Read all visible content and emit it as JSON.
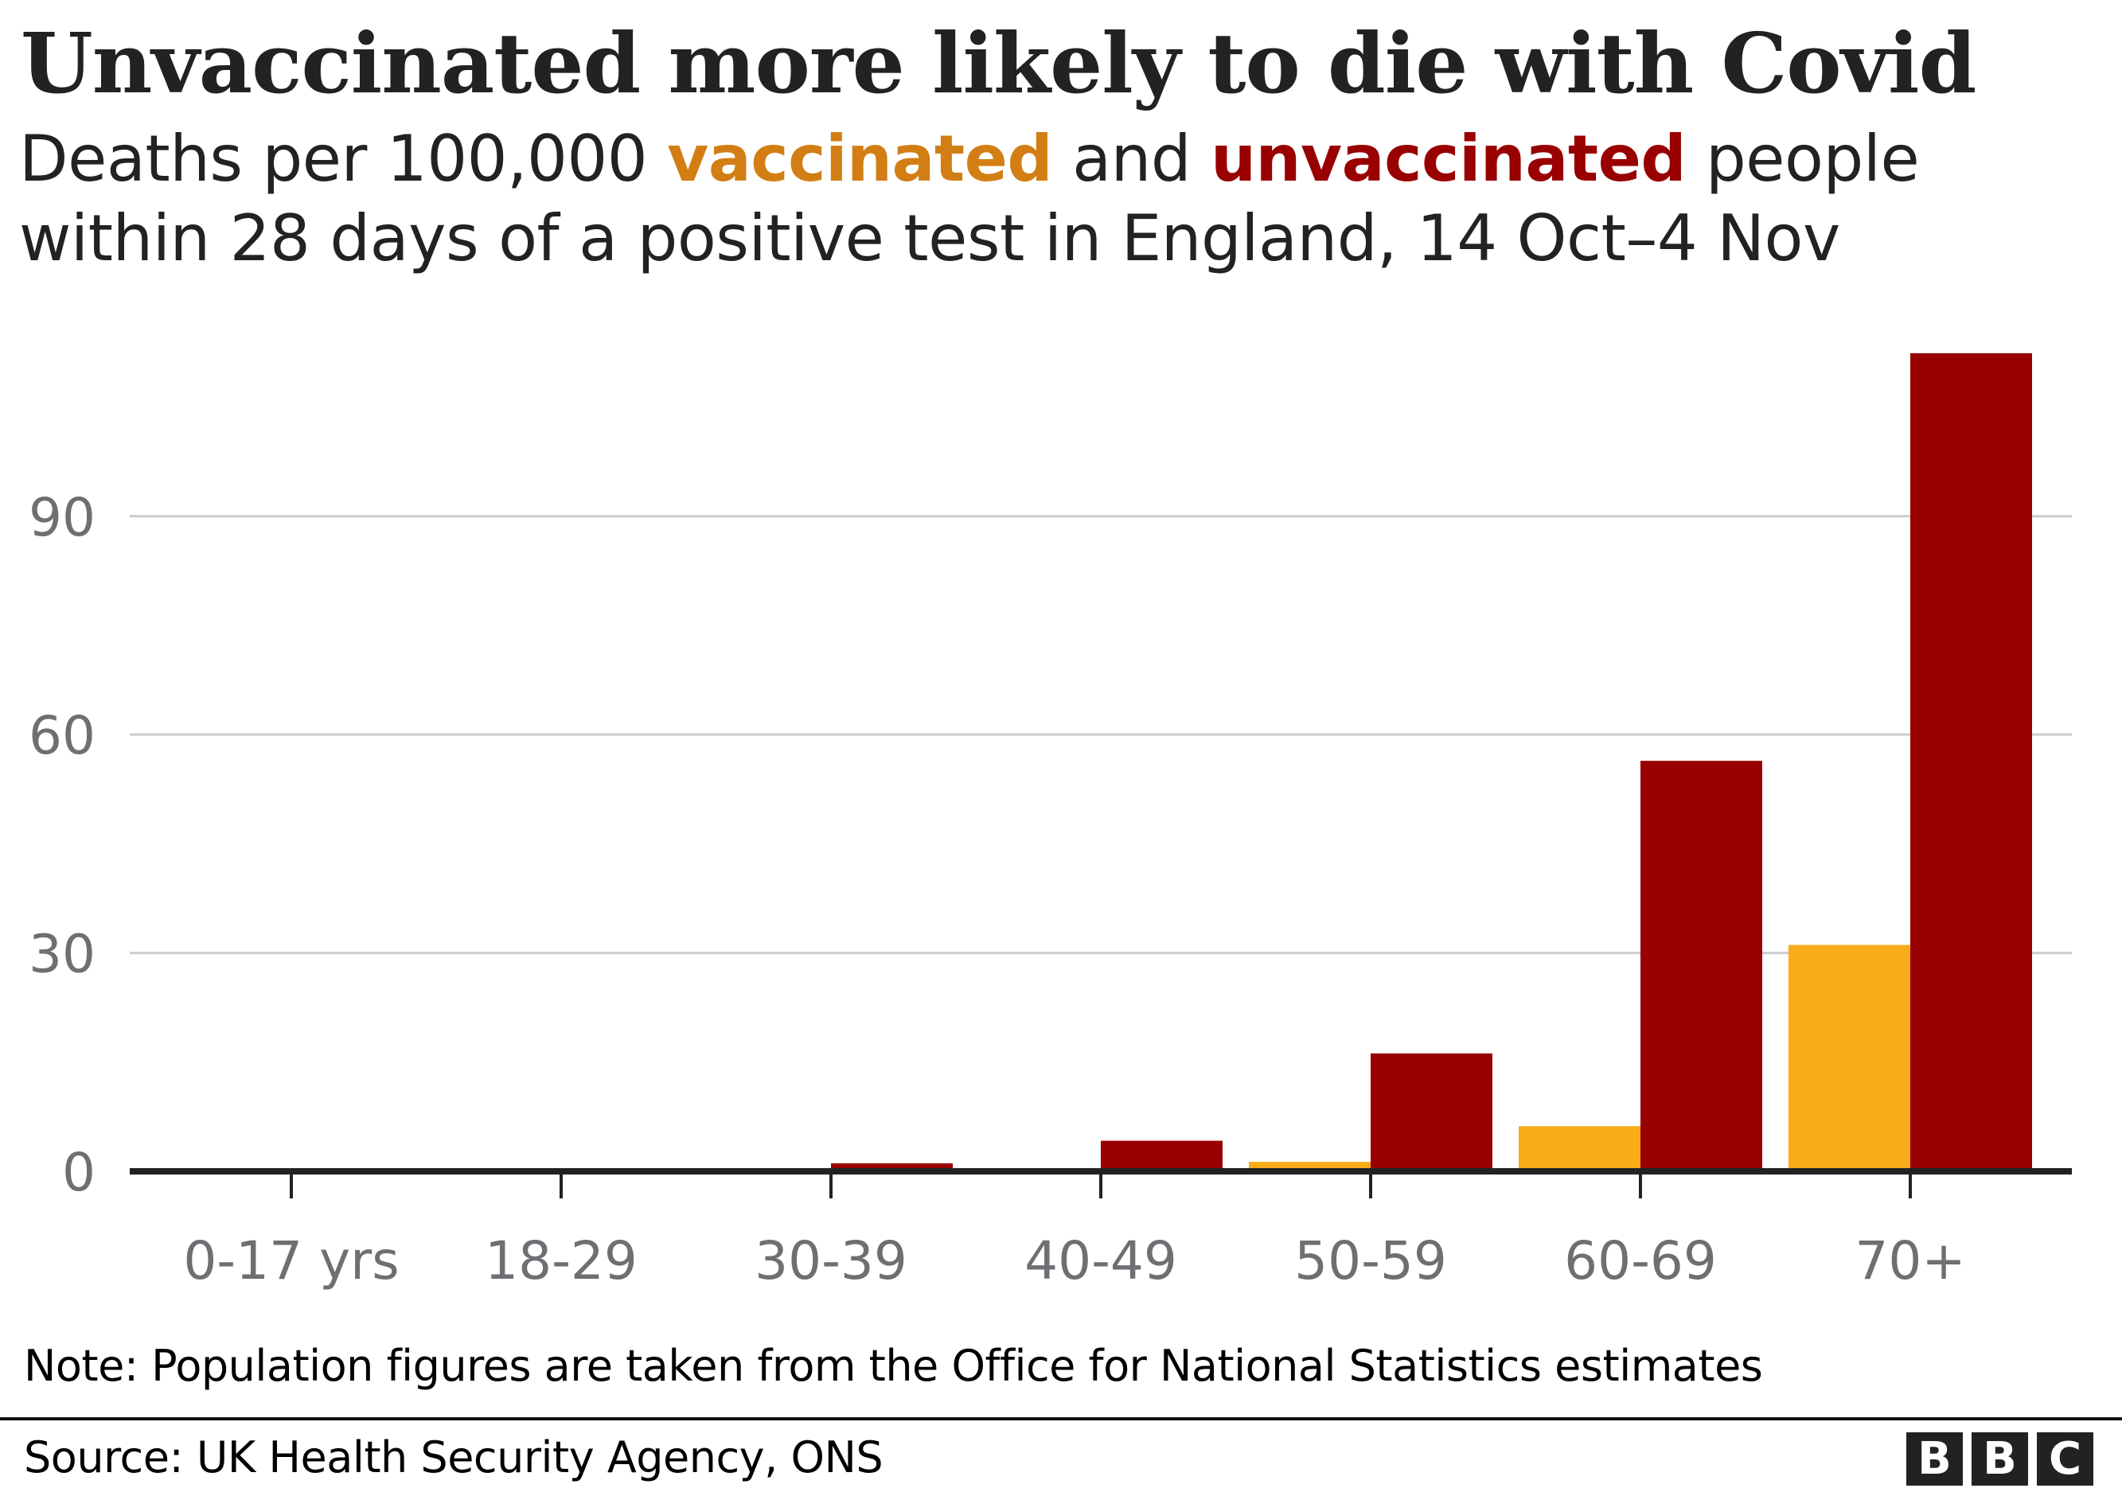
{
  "title": "Unvaccinated more likely to die with Covid",
  "subtitle": {
    "part1": "Deaths per 100,000 ",
    "vaccinated": "vaccinated",
    "part2": " and ",
    "unvaccinated": "unvaccinated",
    "part3": " people",
    "line2": "within 28 days of a positive test in England, 14 Oct–4 Nov"
  },
  "colors": {
    "vaccinated": "#f9ab1a",
    "vaccinated_text": "#d27e14",
    "unvaccinated": "#990000",
    "gridline": "#cccccc",
    "axis": "#222222",
    "tick_label": "#6e6e73"
  },
  "chart_data": {
    "type": "bar",
    "title": "Unvaccinated more likely to die with Covid",
    "subtitle": "Deaths per 100,000 vaccinated and unvaccinated people within 28 days of a positive test in England, 14 Oct–4 Nov",
    "xlabel": "",
    "ylabel": "",
    "categories": [
      "0-17 yrs",
      "18-29",
      "30-39",
      "40-49",
      "50-59",
      "60-69",
      "70+"
    ],
    "series": [
      {
        "name": "vaccinated",
        "color": "#f9ab1a",
        "values": [
          0,
          0,
          0.1,
          0.4,
          1.3,
          6.2,
          31.1
        ]
      },
      {
        "name": "unvaccinated",
        "color": "#990000",
        "values": [
          0,
          0,
          1.1,
          4.2,
          16.2,
          56.4,
          112.4
        ]
      }
    ],
    "ylim": [
      0,
      112.4
    ],
    "yticks": [
      0,
      30,
      60,
      90
    ],
    "ytick_labels": [
      "0",
      "30",
      "60",
      "90"
    ],
    "grid": true,
    "legend": "in-subtitle"
  },
  "note": "Note: Population figures are taken from the Office for National Statistics estimates",
  "source": "Source: UK Health Security Agency, ONS",
  "logo": [
    "B",
    "B",
    "C"
  ]
}
